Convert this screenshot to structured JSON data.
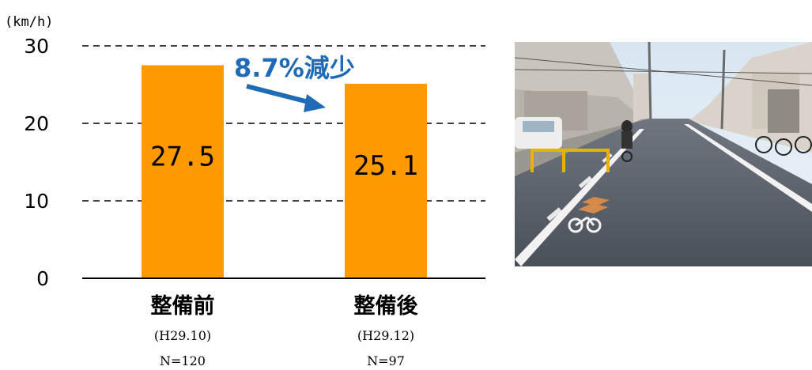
{
  "chart_data": {
    "type": "bar",
    "ylabel": "(km/h)",
    "ylim": [
      0,
      30
    ],
    "yticks": [
      0,
      10,
      20,
      30
    ],
    "grid": "dashed-horizontal",
    "categories": [
      "整備前",
      "整備後"
    ],
    "sublabels": [
      "(H29.10)",
      "(H29.12)"
    ],
    "sample_sizes": [
      "N=120",
      "N=97"
    ],
    "values": [
      27.5,
      25.1
    ],
    "data_labels": [
      "27.5",
      "25.1"
    ],
    "bar_color": "#FF9900",
    "annotation": "8.7%減少",
    "annotation_color": "#1F6BB5"
  },
  "photo": {
    "icon": "road-photo-bicycle-lane"
  }
}
